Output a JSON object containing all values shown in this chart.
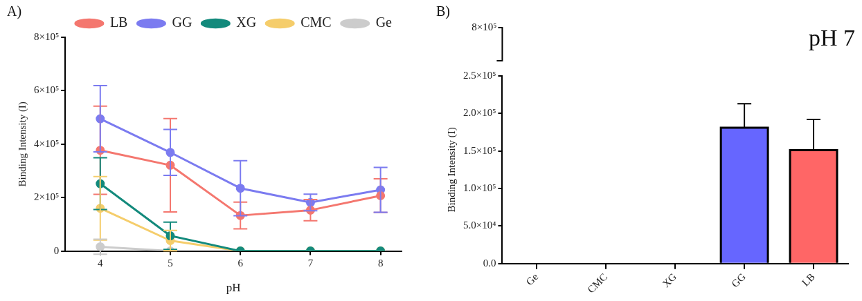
{
  "chart_data": [
    {
      "type": "line",
      "title": "A)",
      "xlabel": "pH",
      "ylabel": "Binding Intensity (I)",
      "x": [
        4,
        5,
        6,
        7,
        8
      ],
      "xlim": [
        3.5,
        8.3
      ],
      "xticks": [
        4,
        5,
        6,
        7,
        8
      ],
      "ylim": [
        0,
        800000
      ],
      "yticks": [
        0,
        {
          "value": 200000,
          "label": "2×10⁵"
        },
        {
          "value": 400000,
          "label": "4×10⁵"
        },
        {
          "value": 600000,
          "label": "6×10⁵"
        },
        {
          "value": 800000,
          "label": "8×10⁵"
        }
      ],
      "grid": false,
      "legend": "top right",
      "marker": "circle",
      "line_style": "solid",
      "series": [
        {
          "name": "LB",
          "color": "#f4776f",
          "values": [
            377000,
            321000,
            133000,
            153000,
            207000
          ],
          "errors": [
            165000,
            175000,
            50000,
            40000,
            63000
          ]
        },
        {
          "name": "GG",
          "color": "#7b7bf0",
          "values": [
            495000,
            369000,
            235000,
            182000,
            229000
          ],
          "errors": [
            124000,
            86000,
            103000,
            31000,
            84000
          ]
        },
        {
          "name": "XG",
          "color": "#138a7c",
          "values": [
            252000,
            57000,
            0,
            0,
            0
          ],
          "errors": [
            97000,
            51000,
            null,
            null,
            null
          ]
        },
        {
          "name": "CMC",
          "color": "#f5cd6b",
          "values": [
            160000,
            39000,
            0,
            0,
            0
          ],
          "errors": [
            119000,
            38000,
            null,
            null,
            null
          ]
        },
        {
          "name": "Ge",
          "color": "#cccccc",
          "values": [
            16000,
            0,
            0,
            0,
            0
          ],
          "errors": [
            28000,
            null,
            null,
            null,
            null
          ]
        }
      ]
    },
    {
      "type": "bar",
      "title": "B)",
      "ylabel": "Binding Intensity (I)",
      "categories": [
        "Ge",
        "CMC",
        "XG",
        "GG",
        "LB"
      ],
      "ylim": [
        0,
        250000
      ],
      "yticks": [
        {
          "value": 0,
          "label": "0.0"
        },
        {
          "value": 50000,
          "label": "5.0×10⁴"
        },
        {
          "value": 100000,
          "label": "1.0×10⁵"
        },
        {
          "value": 150000,
          "label": "1.5×10⁵"
        },
        {
          "value": 200000,
          "label": "2.0×10⁵"
        },
        {
          "value": 250000,
          "label": "2.5×10⁵"
        }
      ],
      "grid": false,
      "annotations": [
        "pH 7",
        "8×10⁵"
      ],
      "series": [
        {
          "values": [
            0,
            0,
            0,
            181000,
            151000
          ],
          "colors": [
            "#cccccc",
            "#f5cd6b",
            "#138a7c",
            "#6666ff",
            "#ff6666"
          ],
          "errors": [
            null,
            null,
            null,
            [
              181000,
              213000
            ],
            [
              151000,
              192000
            ]
          ]
        }
      ]
    }
  ]
}
